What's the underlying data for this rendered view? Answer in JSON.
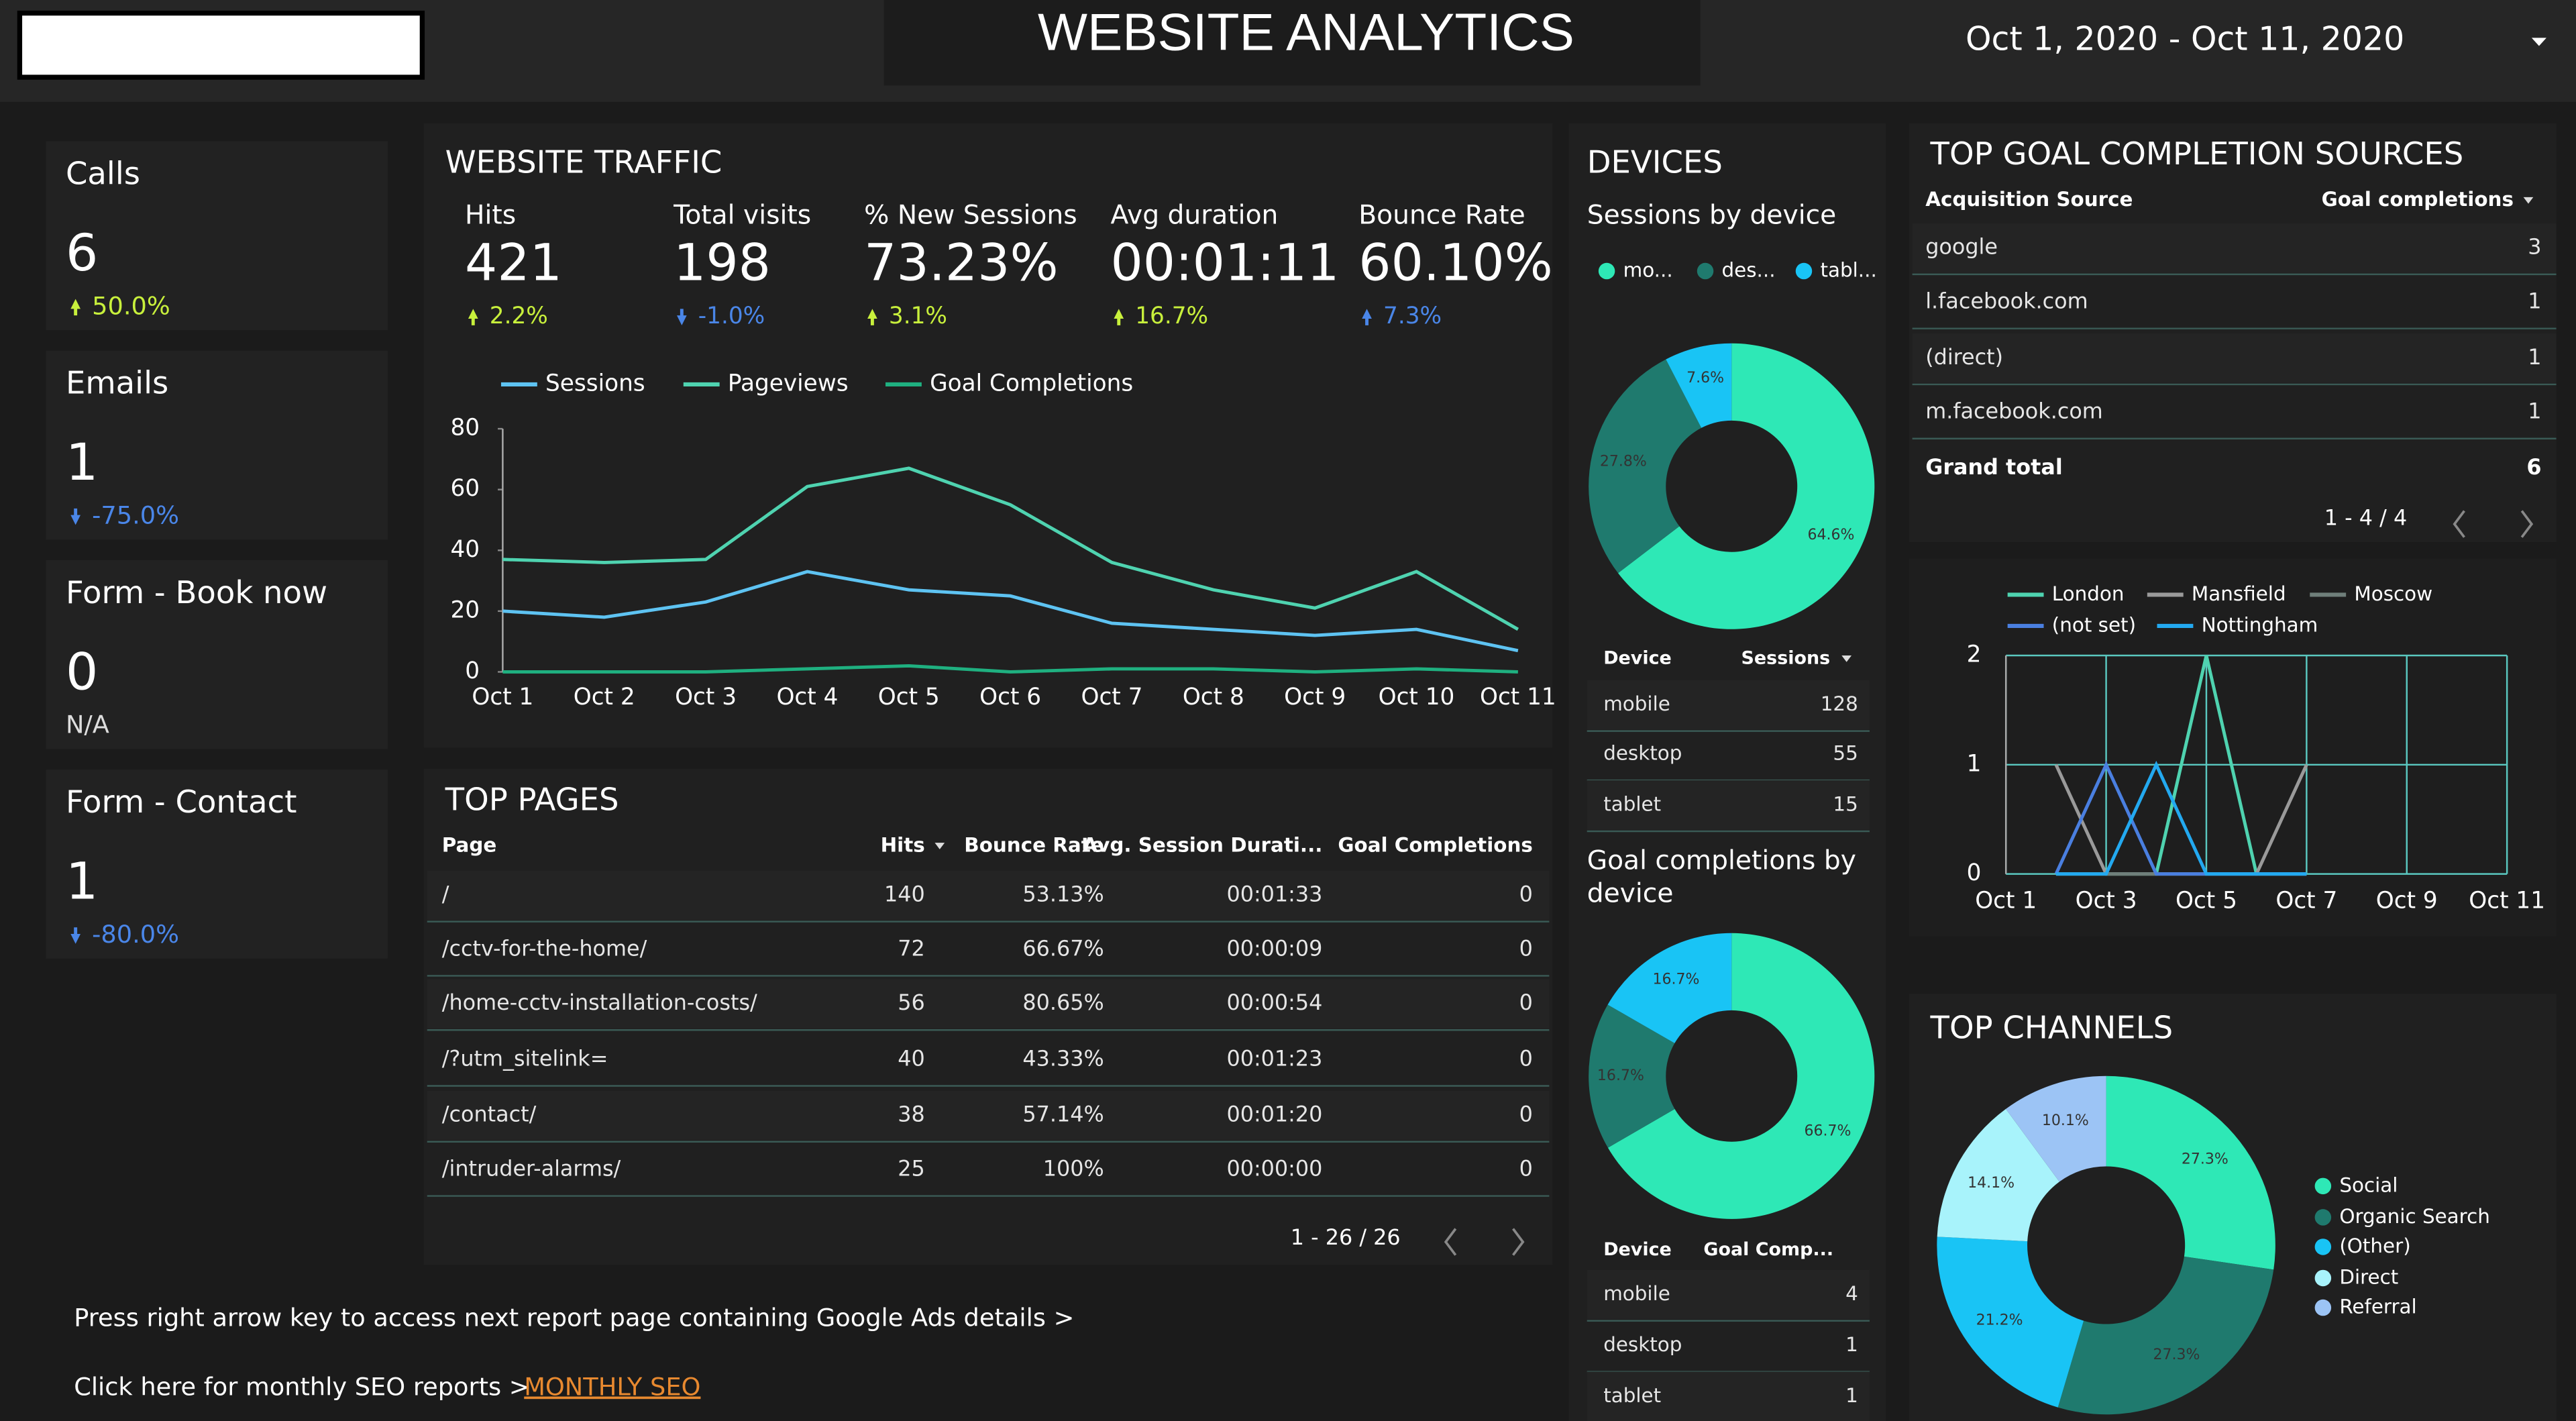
{
  "header": {
    "title": "WEBSITE ANALYTICS",
    "date_range": "Oct 1, 2020 - Oct 11, 2020"
  },
  "scorecards": [
    {
      "label": "Calls",
      "value": 6,
      "change": "50.0%",
      "trend": "up",
      "change_color": "#c8f03c"
    },
    {
      "label": "Emails",
      "value": 1,
      "change": "-75.0%",
      "trend": "down",
      "change_color": "#4a86e8"
    },
    {
      "label": "Form - Book now",
      "value": 0,
      "change": "N/A",
      "change_color": "#dddddd"
    },
    {
      "label": "Form - Contact",
      "value": 1,
      "change": "-80.0%",
      "trend": "down",
      "change_color": "#4a86e8"
    }
  ],
  "traffic_panel": {
    "title": "WEBSITE TRAFFIC",
    "metrics": [
      {
        "label": "Hits",
        "value": 421,
        "change": "2.2%",
        "trend": "up",
        "change_color": "#c8f03c"
      },
      {
        "label": "Total visits",
        "value": 198,
        "change": "-1.0%",
        "trend": "down",
        "change_color": "#4a86e8"
      },
      {
        "label": "% New Sessions",
        "value": "73.23%",
        "change": "3.1%",
        "trend": "up",
        "change_color": "#c8f03c"
      },
      {
        "label": "Avg duration",
        "value": "00:01:11",
        "change": "16.7%",
        "trend": "up",
        "change_color": "#c8f03c"
      },
      {
        "label": "Bounce Rate",
        "value": "60.10%",
        "change": "7.3%",
        "trend": "up",
        "change_color": "#4a86e8"
      }
    ]
  },
  "top_pages": {
    "title": "TOP PAGES",
    "columns": [
      "Page",
      "Hits",
      "Bounce Rate",
      "Avg. Session Durati...",
      "Goal Completions"
    ],
    "rows": [
      [
        "/",
        140,
        "53.13%",
        "00:01:33",
        0
      ],
      [
        "/cctv-for-the-home/",
        72,
        "66.67%",
        "00:00:09",
        0
      ],
      [
        "/home-cctv-installation-costs/",
        56,
        "80.65%",
        "00:00:54",
        0
      ],
      [
        "/?utm_sitelink=",
        40,
        "43.33%",
        "00:01:23",
        0
      ],
      [
        "/contact/",
        38,
        "57.14%",
        "00:01:20",
        0
      ],
      [
        "/intruder-alarms/",
        25,
        "100%",
        "00:00:00",
        0
      ]
    ],
    "pagination": "1 - 26 / 26"
  },
  "devices_panel": {
    "title": "DEVICES",
    "tables": [
      {
        "columns": [
          "Device",
          "Sessions"
        ],
        "rows": [
          [
            "mobile",
            128
          ],
          [
            "desktop",
            55
          ],
          [
            "tablet",
            15
          ]
        ]
      },
      {
        "columns": [
          "Device",
          "Goal Comp..."
        ],
        "rows": [
          [
            "mobile",
            4
          ],
          [
            "desktop",
            1
          ],
          [
            "tablet",
            1
          ]
        ]
      }
    ]
  },
  "goal_sources": {
    "title": "TOP GOAL COMPLETION SOURCES",
    "columns": [
      "Acquisition Source",
      "Goal completions"
    ],
    "rows": [
      [
        "google",
        3
      ],
      [
        "l.facebook.com",
        1
      ],
      [
        "(direct)",
        1
      ],
      [
        "m.facebook.com",
        1
      ]
    ],
    "total": [
      "Grand total",
      6
    ],
    "pagination": "1 - 4 / 4"
  },
  "footer": {
    "note": "Press right arrow key to access next report page containing Google Ads details >",
    "seo_text": "Click here for monthly SEO reports >",
    "seo_link": "MONTHLY SEO"
  },
  "chart_data": [
    {
      "type": "line",
      "categories": [
        "Oct 1",
        "Oct 2",
        "Oct 3",
        "Oct 4",
        "Oct 5",
        "Oct 6",
        "Oct 7",
        "Oct 8",
        "Oct 9",
        "Oct 10",
        "Oct 11"
      ],
      "series": [
        {
          "name": "Sessions",
          "color": "#5ec3f2",
          "values": [
            20,
            18,
            23,
            33,
            27,
            25,
            16,
            14,
            12,
            14,
            7
          ]
        },
        {
          "name": "Pageviews",
          "color": "#4fd3b0",
          "values": [
            37,
            36,
            37,
            61,
            67,
            55,
            36,
            27,
            21,
            33,
            14
          ]
        },
        {
          "name": "Goal Completions",
          "color": "#1fb080",
          "values": [
            0,
            0,
            0,
            1,
            2,
            0,
            1,
            1,
            0,
            1,
            0
          ]
        }
      ],
      "ylim": [
        0,
        80
      ],
      "yticks": [
        0,
        20,
        40,
        60,
        80
      ],
      "grid": false
    },
    {
      "type": "pie",
      "title": "Sessions by device",
      "categories": [
        "mo...",
        "des...",
        "tabl..."
      ],
      "values": [
        64.6,
        27.8,
        7.6
      ],
      "value_labels": [
        "64.6%",
        "27.8%",
        "7.6%"
      ],
      "colors": [
        "#2ee8b6",
        "#1f7a6e",
        "#19c4f5"
      ]
    },
    {
      "type": "pie",
      "title": "Goal completions by device",
      "values": [
        66.7,
        16.7,
        16.7
      ],
      "value_labels": [
        "66.7%",
        "16.7%",
        "16.7%"
      ],
      "colors": [
        "#2ee8b6",
        "#1f7a6e",
        "#19c4f5"
      ]
    },
    {
      "type": "line",
      "categories": [
        "Oct 1",
        null,
        "Oct 3",
        null,
        "Oct 5",
        null,
        "Oct 7",
        null,
        "Oct 9",
        null,
        "Oct 11"
      ],
      "series": [
        {
          "name": "London",
          "color": "#4fd3b0",
          "values": [
            null,
            0,
            0,
            0,
            2,
            0,
            0,
            null,
            null,
            null,
            null
          ]
        },
        {
          "name": "Mansfield",
          "color": "#9a9a9a",
          "values": [
            null,
            1,
            0,
            0,
            0,
            0,
            1,
            null,
            null,
            null,
            null
          ]
        },
        {
          "name": "Moscow",
          "color": "#6f7f7a",
          "values": [
            null,
            0,
            0,
            0,
            0,
            0,
            0,
            null,
            null,
            null,
            null
          ]
        },
        {
          "name": "(not set)",
          "color": "#4a7fe0",
          "values": [
            null,
            0,
            1,
            0,
            0,
            0,
            0,
            null,
            null,
            null,
            null
          ]
        },
        {
          "name": "Nottingham",
          "color": "#23a9f0",
          "values": [
            null,
            0,
            0,
            1,
            0,
            0,
            0,
            null,
            null,
            null,
            null
          ]
        }
      ],
      "ylim": [
        0,
        2
      ],
      "yticks": [
        0,
        1,
        2
      ],
      "grid": true
    },
    {
      "type": "pie",
      "title": "TOP CHANNELS",
      "categories": [
        "Social",
        "Organic Search",
        "(Other)",
        "Direct",
        "Referral"
      ],
      "values": [
        27.3,
        27.3,
        21.2,
        14.1,
        10.1
      ],
      "value_labels": [
        "27.3%",
        "27.3%",
        "21.2%",
        "14.1%",
        "10.1%"
      ],
      "colors": [
        "#2ee8b6",
        "#1f7a6e",
        "#19c4f5",
        "#a8f3fb",
        "#9cc4f5"
      ]
    }
  ]
}
